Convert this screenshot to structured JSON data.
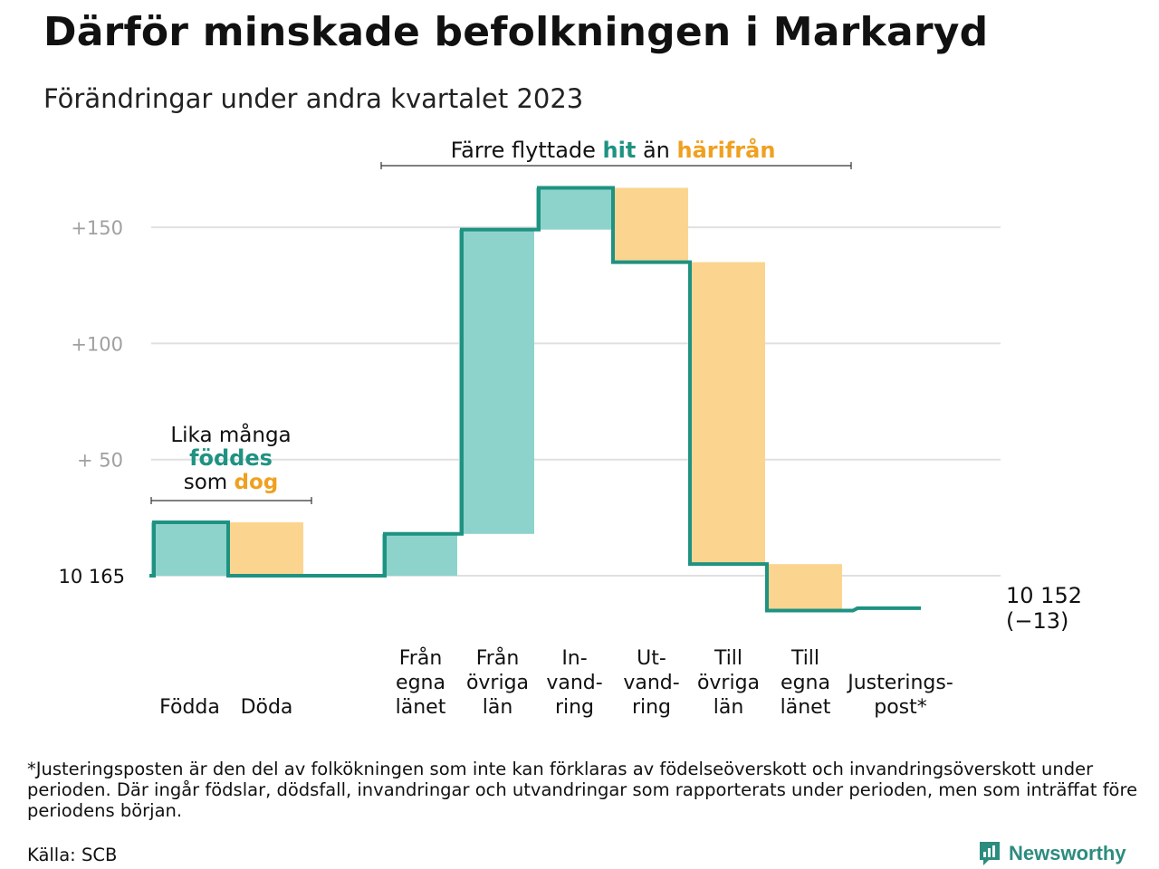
{
  "title": "Därför minskade befolkningen i Markaryd",
  "subtitle": "Förändringar under andra kvartalet 2023",
  "colors": {
    "in": "#8dd3cb",
    "out": "#fbd58f",
    "line": "#1f9282",
    "in_text": "#1f9282",
    "out_text": "#f0a020",
    "grid": "#e0e0e0",
    "axis_text": "#a0a0a0"
  },
  "chart_data": {
    "type": "waterfall",
    "start_value": 10165,
    "end_value": 10152,
    "net_change": -13,
    "ylim": [
      -14,
      173
    ],
    "grid": true,
    "y_ticks": [
      {
        "value": 0,
        "label": "10  165"
      },
      {
        "value": 50,
        "label": "+  50"
      },
      {
        "value": 100,
        "label": "+100"
      },
      {
        "value": 150,
        "label": "+150"
      }
    ],
    "steps": [
      {
        "label": "Födda",
        "value": 23,
        "kind": "in"
      },
      {
        "label": "Döda",
        "value": -23,
        "kind": "out"
      },
      {
        "label": "",
        "value": 0,
        "kind": "gap"
      },
      {
        "label": "Från egna länet",
        "value": 18,
        "kind": "in"
      },
      {
        "label": "Från övriga län",
        "value": 131,
        "kind": "in"
      },
      {
        "label": "In-vand-ring",
        "value": 18,
        "kind": "in"
      },
      {
        "label": "Ut-vand-ring",
        "value": -32,
        "kind": "out"
      },
      {
        "label": "Till övriga län",
        "value": -130,
        "kind": "out"
      },
      {
        "label": "Till egna länet",
        "value": -20,
        "kind": "out"
      },
      {
        "label": "Justerings-post*",
        "value": 1,
        "kind": "adjust"
      }
    ],
    "end_label_value": "10 152",
    "end_label_change": "(−13)",
    "annotations": {
      "births_line1": "Lika många",
      "births_line2": "föddes",
      "births_line3_pre": "som ",
      "births_line3_post": "dog",
      "migration_pre": "Färre flyttade ",
      "migration_hit": "hit",
      "migration_mid": " än ",
      "migration_harifran": "härifrån"
    }
  },
  "footnote": "*Justeringsposten är den del av folkökningen som inte kan förklaras av födelseöverskott och invandringsöverskott under perioden. Där ingår födslar, dödsfall, invandringar och utvandringar som rapporterats under perioden, men som inträffat före periodens början.",
  "source": "Källa: SCB",
  "brand": {
    "name": "Newsworthy",
    "icon": "newsworthy-logo-icon"
  }
}
